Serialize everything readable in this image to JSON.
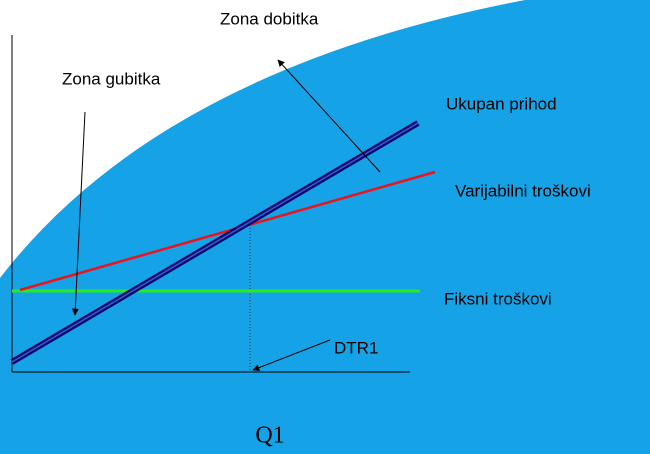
{
  "labels": {
    "zona_dobitka": "Zona dobitka",
    "zona_gubitka": "Zona gubitka",
    "ukupan_prihod": "Ukupan prihod",
    "varijabilni_troskovi": "Varijabilni troškovi",
    "fiksni_troskovi": "Fiksni troškovi",
    "dtr1": "DTR1",
    "q1": "Q1"
  }
}
